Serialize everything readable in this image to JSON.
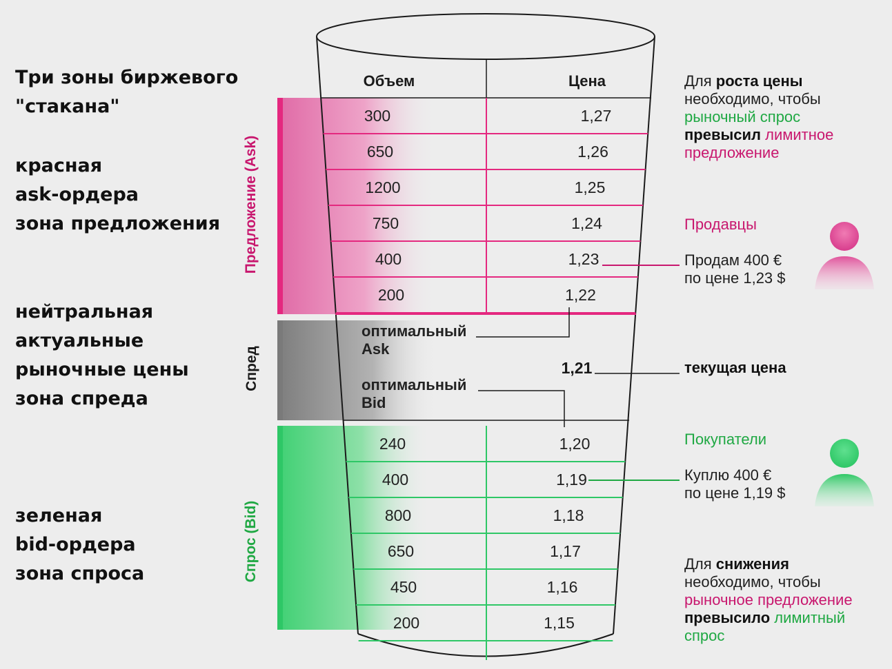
{
  "title": [
    "Три зоны биржевого",
    "\"стакана\""
  ],
  "zones": {
    "ask": [
      "красная",
      "ask-ордера",
      "зона предложения"
    ],
    "spread": [
      "нейтральная",
      "актуальные",
      "рыночные цены",
      "зона спреда"
    ],
    "bid": [
      "зеленая",
      "bid-ордера",
      "зона спроса"
    ]
  },
  "vertical_labels": {
    "ask": "Предложение (Ask)",
    "spread": "Спред",
    "bid": "Спрос (Bid)"
  },
  "columns": {
    "volume": "Объем",
    "price": "Цена"
  },
  "ask_orders": [
    {
      "volume": "300",
      "price": "1,27"
    },
    {
      "volume": "650",
      "price": "1,26"
    },
    {
      "volume": "1200",
      "price": "1,25"
    },
    {
      "volume": "750",
      "price": "1,24"
    },
    {
      "volume": "400",
      "price": "1,23"
    },
    {
      "volume": "200",
      "price": "1,22"
    }
  ],
  "bid_orders": [
    {
      "volume": "240",
      "price": "1,20"
    },
    {
      "volume": "400",
      "price": "1,19"
    },
    {
      "volume": "800",
      "price": "1,18"
    },
    {
      "volume": "650",
      "price": "1,17"
    },
    {
      "volume": "450",
      "price": "1,16"
    },
    {
      "volume": "200",
      "price": "1,15"
    }
  ],
  "spread": {
    "best_ask": [
      "оптимальный",
      "Ask"
    ],
    "best_bid": [
      "оптимальный",
      "Bid"
    ],
    "current_price": "1,21",
    "current_price_label": "текущая цена"
  },
  "notes": {
    "rise": {
      "p1": "Для ",
      "p2": "роста цены",
      "l2": "необходимо, чтобы",
      "l3": "рыночный спрос",
      "l4a": "превысил",
      "l4b": " лимитное",
      "l5": "предложение"
    },
    "sellers": "Продавцы",
    "sell_order": [
      "Продам 400 €",
      "по цене 1,23 $"
    ],
    "buyers": "Покупатели",
    "buy_order": [
      "Куплю 400 €",
      "по цене 1,19 $"
    ],
    "fall": {
      "p1": "Для ",
      "p2": "снижения",
      "l2": "необходимо, чтобы",
      "l3": "рыночное предложение",
      "l4a": "превысило",
      "l4b": " лимитный",
      "l5": "спрос"
    }
  },
  "colors": {
    "ask": "#e4287f",
    "spread": "#8a8a8a",
    "bid": "#2ec766",
    "background": "#ededed"
  }
}
